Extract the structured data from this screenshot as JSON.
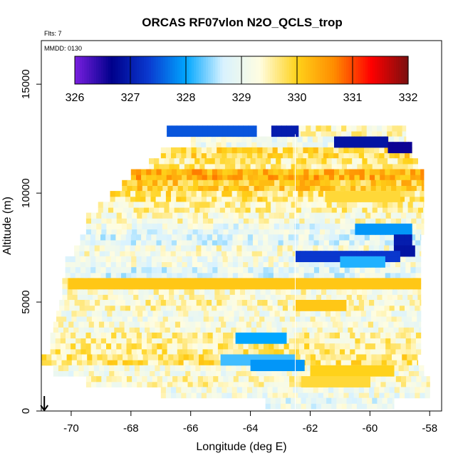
{
  "chart_data": {
    "type": "heatmap",
    "title": "ORCAS RF07vlon N2O_QCLS_trop",
    "flights_label": "Flts: 7",
    "date_label": "MMDD: 0130",
    "xlabel": "Longitude (deg E)",
    "ylabel": "Altitude (m)",
    "xlim": [
      -71.0,
      -57.6
    ],
    "ylim": [
      0,
      17000
    ],
    "x_ticks": [
      -70,
      -68,
      -66,
      -64,
      -62,
      -60,
      -58
    ],
    "y_ticks": [
      0,
      5000,
      10000,
      15000
    ],
    "colorbar": {
      "ticks": [
        326,
        327,
        328,
        329,
        330,
        331,
        332
      ],
      "range": [
        326,
        332
      ],
      "colors": [
        "#7a1fe0",
        "#00008b",
        "#0a3ad0",
        "#00a6ff",
        "#d8f2ff",
        "#fffde0",
        "#ffd21a",
        "#ff8c00",
        "#ff0000",
        "#7a1010"
      ]
    },
    "grid_cell": {
      "lon_width": 0.17,
      "alt_height": 250
    },
    "layers": [
      {
        "alt": 12600,
        "lon_min": -63.0,
        "lon_max": -58.8,
        "value": 329.4
      },
      {
        "alt": 12100,
        "lon_min": -66.0,
        "lon_max": -58.8,
        "value": 329.1
      },
      {
        "alt": 11600,
        "lon_min": -67.0,
        "lon_max": -58.6,
        "value": 329.8
      },
      {
        "alt": 11100,
        "lon_min": -67.4,
        "lon_max": -58.4,
        "value": 329.6
      },
      {
        "alt": 10600,
        "lon_min": -68.0,
        "lon_max": -58.2,
        "value": 330.3
      },
      {
        "alt": 10100,
        "lon_min": -68.3,
        "lon_max": -58.2,
        "value": 330.0
      },
      {
        "alt": 9600,
        "lon_min": -68.7,
        "lon_max": -58.2,
        "value": 329.7
      },
      {
        "alt": 9100,
        "lon_min": -69.1,
        "lon_max": -58.2,
        "value": 329.5
      },
      {
        "alt": 8600,
        "lon_min": -69.5,
        "lon_max": -58.2,
        "value": 329.3
      },
      {
        "alt": 8100,
        "lon_min": -69.5,
        "lon_max": -58.2,
        "value": 329.0
      },
      {
        "alt": 7600,
        "lon_min": -69.7,
        "lon_max": -58.3,
        "value": 328.9
      },
      {
        "alt": 7100,
        "lon_min": -69.9,
        "lon_max": -58.3,
        "value": 329.2
      },
      {
        "alt": 6600,
        "lon_min": -70.2,
        "lon_max": -58.3,
        "value": 329.1
      },
      {
        "alt": 6100,
        "lon_min": -70.2,
        "lon_max": -58.3,
        "value": 328.9
      },
      {
        "alt": 5600,
        "lon_min": -70.3,
        "lon_max": -58.3,
        "value": 329.6
      },
      {
        "alt": 5100,
        "lon_min": -70.3,
        "lon_max": -58.3,
        "value": 329.3
      },
      {
        "alt": 4600,
        "lon_min": -70.4,
        "lon_max": -58.3,
        "value": 329.4
      },
      {
        "alt": 4100,
        "lon_min": -70.5,
        "lon_max": -58.3,
        "value": 329.2
      },
      {
        "alt": 3600,
        "lon_min": -70.6,
        "lon_max": -58.3,
        "value": 329.3
      },
      {
        "alt": 3100,
        "lon_min": -70.7,
        "lon_max": -58.3,
        "value": 329.5
      },
      {
        "alt": 2600,
        "lon_min": -70.7,
        "lon_max": -58.3,
        "value": 329.6
      },
      {
        "alt": 2100,
        "lon_min": -71.0,
        "lon_max": -58.4,
        "value": 329.7
      },
      {
        "alt": 1600,
        "lon_min": -70.6,
        "lon_max": -58.2,
        "value": 329.2
      },
      {
        "alt": 1100,
        "lon_min": -69.5,
        "lon_max": -58.0,
        "value": 329.4
      },
      {
        "alt": 600,
        "lon_min": -67.0,
        "lon_max": -58.0,
        "value": 329.1
      },
      {
        "alt": 100,
        "lon_min": -63.5,
        "lon_max": -59.2,
        "value": 329.0
      }
    ],
    "highlights": [
      {
        "alt": 12600,
        "lon_min": -66.8,
        "lon_max": -63.8,
        "value": 327.5
      },
      {
        "alt": 12600,
        "lon_min": -63.3,
        "lon_max": -62.4,
        "value": 327.0
      },
      {
        "alt": 12100,
        "lon_min": -61.2,
        "lon_max": -59.4,
        "value": 326.9
      },
      {
        "alt": 11850,
        "lon_min": -59.4,
        "lon_max": -58.6,
        "value": 326.6
      },
      {
        "alt": 8100,
        "lon_min": -60.5,
        "lon_max": -58.6,
        "value": 327.9
      },
      {
        "alt": 7600,
        "lon_min": -59.2,
        "lon_max": -58.6,
        "value": 327.0
      },
      {
        "alt": 7100,
        "lon_min": -59.2,
        "lon_max": -58.5,
        "value": 326.9
      },
      {
        "alt": 6850,
        "lon_min": -62.5,
        "lon_max": -59.0,
        "value": 327.3
      },
      {
        "alt": 6600,
        "lon_min": -61.0,
        "lon_max": -59.5,
        "value": 328.1
      },
      {
        "alt": 5600,
        "lon_min": -70.1,
        "lon_max": -58.3,
        "value": 330.1
      },
      {
        "alt": 4600,
        "lon_min": -62.5,
        "lon_max": -60.8,
        "value": 330.1
      },
      {
        "alt": 3100,
        "lon_min": -64.5,
        "lon_max": -62.8,
        "value": 328.0
      },
      {
        "alt": 2100,
        "lon_min": -65.0,
        "lon_max": -62.5,
        "value": 328.2
      },
      {
        "alt": 1850,
        "lon_min": -64.0,
        "lon_max": -62.2,
        "value": 327.9
      },
      {
        "alt": 1600,
        "lon_min": -62.0,
        "lon_max": -59.2,
        "value": 330.0
      },
      {
        "alt": 1100,
        "lon_min": -62.3,
        "lon_max": -60.0,
        "value": 329.9
      },
      {
        "alt": 9600,
        "lon_min": -61.5,
        "lon_max": -59.0,
        "value": 329.9
      }
    ],
    "vertical_line_lon": -62.5,
    "flight_start_arrow_lon": -70.9
  }
}
